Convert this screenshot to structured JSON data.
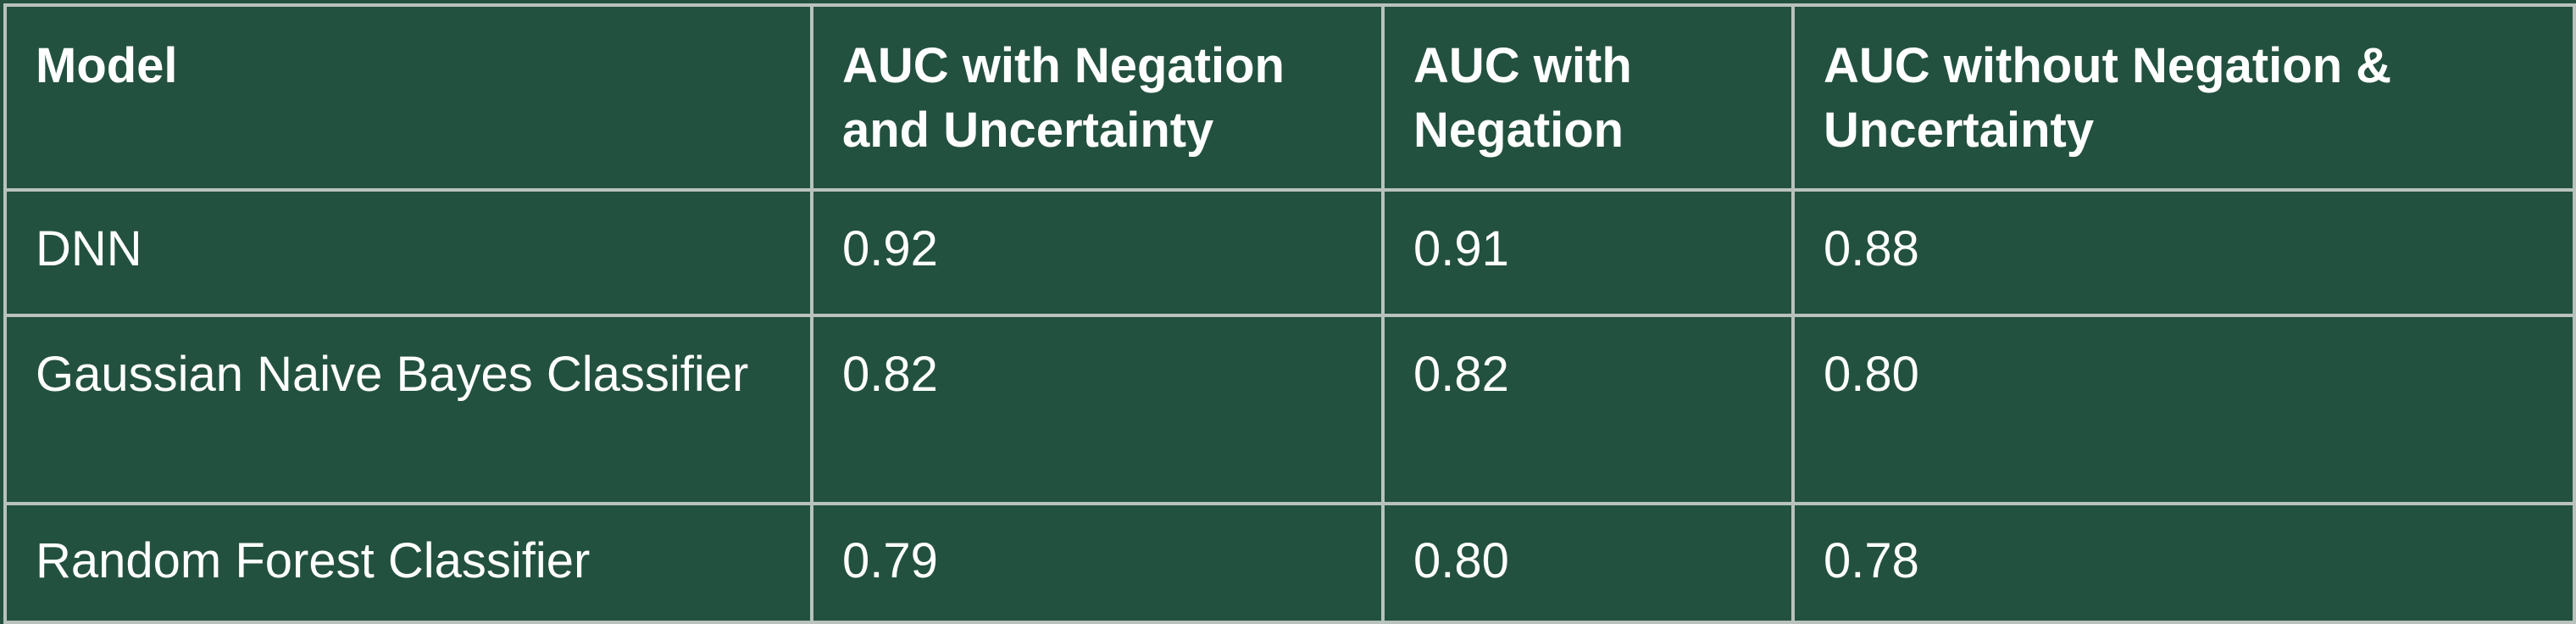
{
  "table": {
    "headers": [
      "Model",
      "AUC with Negation and Uncertainty",
      "AUC with Negation",
      "AUC without Negation & Uncertainty"
    ],
    "rows": [
      [
        "DNN",
        "0.92",
        "0.91",
        "0.88"
      ],
      [
        "Gaussian Naive Bayes Classifier",
        "0.82",
        "0.82",
        "0.80"
      ],
      [
        "Random Forest Classifier",
        "0.79",
        "0.80",
        "0.78"
      ]
    ]
  },
  "colors": {
    "background": "#23513f",
    "grid_lines": "#b9c2bd",
    "text": "#ffffff"
  }
}
